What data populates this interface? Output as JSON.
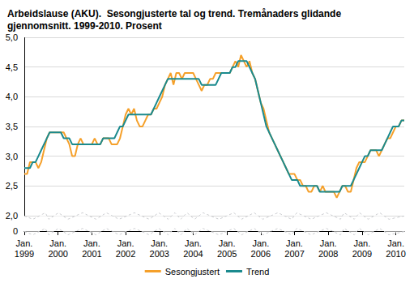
{
  "chart_data": {
    "type": "line",
    "title": "Arbeidslause (AKU).  Sesongjusterte tal og trend. Tremånaders glidande\ngjennomsnitt. 1999-2010. Prosent",
    "categories": [
      "Jan.\n1999",
      null,
      null,
      null,
      null,
      null,
      null,
      null,
      null,
      null,
      null,
      null,
      "Jan.\n2000",
      null,
      null,
      null,
      null,
      null,
      null,
      null,
      null,
      null,
      null,
      null,
      "Jan.\n2001",
      null,
      null,
      null,
      null,
      null,
      null,
      null,
      null,
      null,
      null,
      null,
      "Jan.\n2002",
      null,
      null,
      null,
      null,
      null,
      null,
      null,
      null,
      null,
      null,
      null,
      "Jan.\n2003",
      null,
      null,
      null,
      null,
      null,
      null,
      null,
      null,
      null,
      null,
      null,
      "Jan.\n2004",
      null,
      null,
      null,
      null,
      null,
      null,
      null,
      null,
      null,
      null,
      null,
      "Jan.\n2005",
      null,
      null,
      null,
      null,
      null,
      null,
      null,
      null,
      null,
      null,
      null,
      "Jan.\n2006",
      null,
      null,
      null,
      null,
      null,
      null,
      null,
      null,
      null,
      null,
      null,
      "Jan.\n2007",
      null,
      null,
      null,
      null,
      null,
      null,
      null,
      null,
      null,
      null,
      null,
      "Jan.\n2008",
      null,
      null,
      null,
      null,
      null,
      null,
      null,
      null,
      null,
      null,
      null,
      "Jan.\n2009",
      null,
      null,
      null,
      null,
      null,
      null,
      null,
      null,
      null,
      null,
      null,
      "Jan.\n2010",
      null,
      null,
      null
    ],
    "series": [
      {
        "name": "Sesongjustert",
        "color": "#f5a02a",
        "values": [
          2.7,
          2.7,
          2.9,
          2.9,
          2.9,
          2.8,
          2.9,
          3.1,
          3.3,
          3.4,
          3.4,
          3.4,
          3.4,
          3.4,
          3.4,
          3.3,
          3.2,
          3.0,
          3.0,
          3.2,
          3.3,
          3.2,
          3.2,
          3.2,
          3.2,
          3.3,
          3.2,
          3.2,
          3.3,
          3.3,
          3.3,
          3.2,
          3.2,
          3.2,
          3.3,
          3.5,
          3.7,
          3.8,
          3.7,
          3.8,
          3.6,
          3.5,
          3.5,
          3.6,
          3.7,
          3.7,
          3.8,
          3.8,
          3.9,
          4.0,
          4.2,
          4.3,
          4.4,
          4.2,
          4.4,
          4.4,
          4.3,
          4.4,
          4.4,
          4.4,
          4.4,
          4.3,
          4.2,
          4.1,
          4.2,
          4.2,
          4.3,
          4.3,
          4.4,
          4.4,
          4.4,
          4.4,
          4.4,
          4.4,
          4.5,
          4.6,
          4.5,
          4.7,
          4.6,
          4.5,
          4.6,
          4.4,
          4.3,
          4.1,
          3.9,
          3.8,
          3.6,
          3.4,
          3.3,
          3.2,
          3.1,
          3.0,
          2.9,
          2.8,
          2.7,
          2.7,
          2.7,
          2.6,
          2.6,
          2.5,
          2.5,
          2.4,
          2.4,
          2.5,
          2.5,
          2.4,
          2.5,
          2.4,
          2.4,
          2.4,
          2.4,
          2.3,
          2.4,
          2.5,
          2.5,
          2.4,
          2.4,
          2.6,
          2.8,
          2.9,
          2.9,
          2.9,
          3.0,
          3.1,
          3.1,
          3.1,
          3.0,
          3.1,
          3.2,
          3.3,
          3.3,
          3.4,
          3.5,
          3.5,
          3.6,
          3.6
        ]
      },
      {
        "name": "Trend",
        "color": "#1a8a8e",
        "values": [
          2.8,
          2.8,
          2.8,
          2.9,
          2.9,
          3.0,
          3.1,
          3.2,
          3.3,
          3.4,
          3.4,
          3.4,
          3.4,
          3.4,
          3.3,
          3.3,
          3.3,
          3.2,
          3.2,
          3.2,
          3.2,
          3.2,
          3.2,
          3.2,
          3.2,
          3.2,
          3.2,
          3.2,
          3.3,
          3.3,
          3.3,
          3.3,
          3.3,
          3.4,
          3.5,
          3.5,
          3.6,
          3.7,
          3.7,
          3.7,
          3.7,
          3.7,
          3.7,
          3.7,
          3.7,
          3.7,
          3.8,
          3.9,
          4.0,
          4.1,
          4.2,
          4.3,
          4.3,
          4.3,
          4.3,
          4.3,
          4.3,
          4.3,
          4.3,
          4.3,
          4.3,
          4.3,
          4.3,
          4.2,
          4.2,
          4.2,
          4.2,
          4.2,
          4.2,
          4.3,
          4.4,
          4.4,
          4.4,
          4.4,
          4.5,
          4.5,
          4.6,
          4.6,
          4.6,
          4.6,
          4.5,
          4.4,
          4.3,
          4.1,
          3.9,
          3.7,
          3.5,
          3.4,
          3.3,
          3.2,
          3.1,
          3.0,
          2.9,
          2.8,
          2.7,
          2.6,
          2.6,
          2.6,
          2.5,
          2.5,
          2.5,
          2.5,
          2.5,
          2.5,
          2.5,
          2.4,
          2.4,
          2.4,
          2.4,
          2.4,
          2.4,
          2.4,
          2.4,
          2.5,
          2.5,
          2.5,
          2.5,
          2.6,
          2.7,
          2.8,
          2.9,
          3.0,
          3.0,
          3.1,
          3.1,
          3.1,
          3.1,
          3.1,
          3.2,
          3.3,
          3.4,
          3.5,
          3.5,
          3.5,
          3.6,
          3.6
        ]
      }
    ],
    "ylim": [
      0,
      5
    ],
    "yticks": [
      0,
      {
        "value": 2,
        "label": "2,0"
      },
      {
        "value": 2.5,
        "label": "2,5"
      },
      {
        "value": 3,
        "label": "3,0"
      },
      {
        "value": 3.5,
        "label": "3,5"
      },
      {
        "value": 4,
        "label": "4,0"
      },
      {
        "value": 4.5,
        "label": "4,5"
      },
      {
        "value": 5,
        "label": "5,0"
      }
    ],
    "grid": true,
    "legend": "bottom"
  }
}
